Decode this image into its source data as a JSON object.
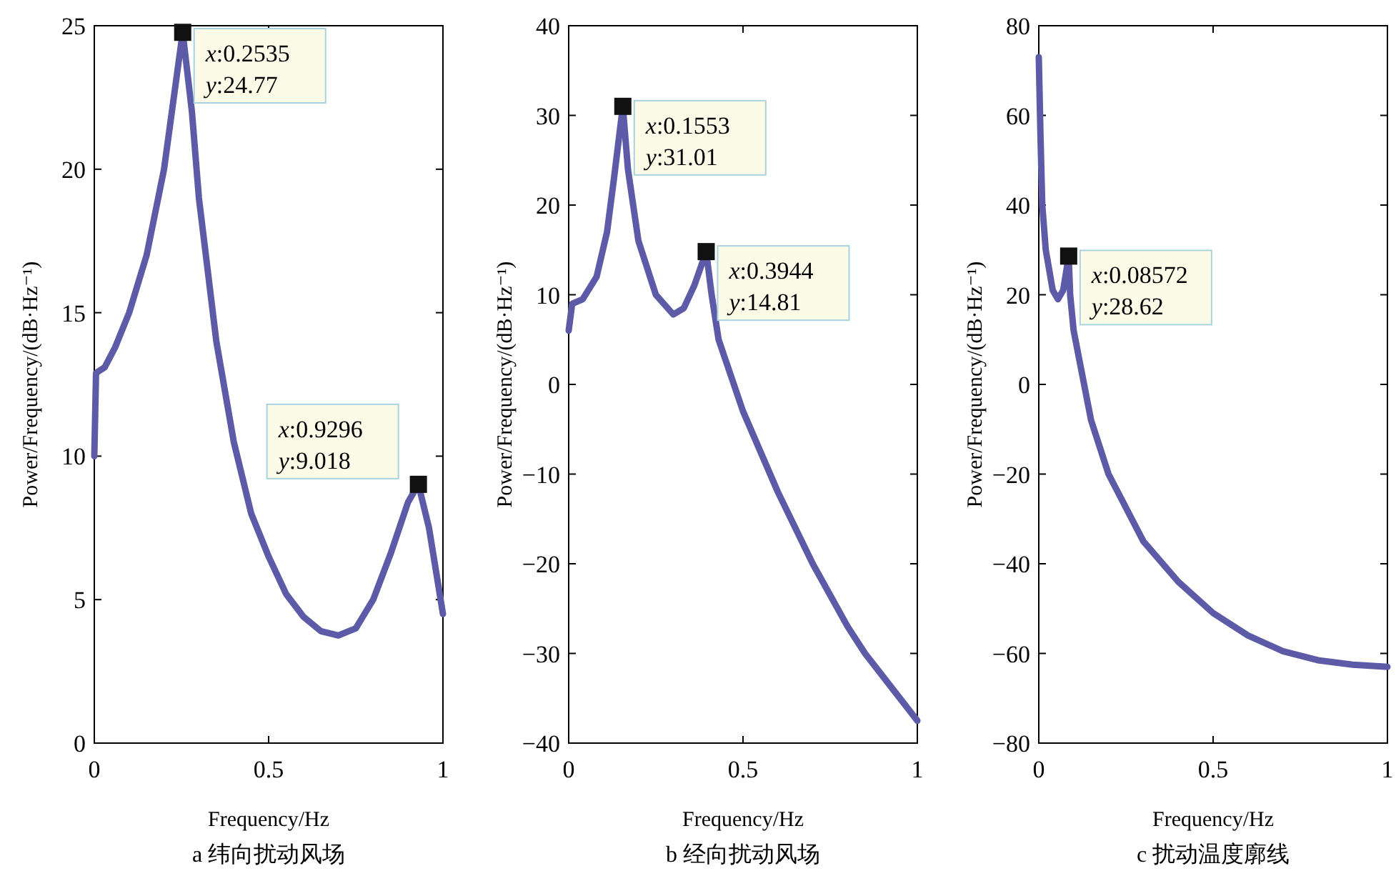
{
  "chart_data": [
    {
      "type": "line",
      "title": "a 纬向扰动风场",
      "xlabel": "Frequency/Hz",
      "ylabel": "Power/Frequency/(dB·Hz⁻¹)",
      "xlim": [
        0,
        1
      ],
      "ylim": [
        0,
        25
      ],
      "xticks": [
        0,
        0.5,
        1
      ],
      "yticks": [
        0,
        5,
        10,
        15,
        20,
        25
      ],
      "x": [
        0,
        0.005,
        0.03,
        0.06,
        0.1,
        0.15,
        0.2,
        0.2535,
        0.28,
        0.3,
        0.35,
        0.4,
        0.45,
        0.5,
        0.55,
        0.6,
        0.65,
        0.7,
        0.75,
        0.8,
        0.85,
        0.9,
        0.9296,
        0.96,
        0.98,
        1
      ],
      "series": [
        {
          "color": "#5d5ba8",
          "values": [
            10,
            12.9,
            13.1,
            13.8,
            15,
            17,
            20,
            24.77,
            22,
            19,
            14,
            10.5,
            8,
            6.5,
            5.2,
            4.4,
            3.9,
            3.75,
            4,
            5,
            6.6,
            8.4,
            9.018,
            7.5,
            6,
            4.5
          ]
        }
      ],
      "annotations": [
        {
          "text": "x:0.2535\ny:24.77",
          "x": 0.2535,
          "y": 24.77
        },
        {
          "text": "x:0.9296\ny:9.018",
          "x": 0.9296,
          "y": 9.018
        }
      ]
    },
    {
      "type": "line",
      "title": "b 经向扰动风场",
      "xlabel": "Frequency/Hz",
      "ylabel": "Power/Frequency/(dB·Hz⁻¹)",
      "xlim": [
        0,
        1
      ],
      "ylim": [
        -40,
        40
      ],
      "xticks": [
        0,
        0.5,
        1
      ],
      "yticks": [
        -40,
        -30,
        -20,
        -10,
        0,
        10,
        20,
        30,
        40
      ],
      "x": [
        0,
        0.01,
        0.04,
        0.08,
        0.11,
        0.13,
        0.1553,
        0.17,
        0.2,
        0.25,
        0.3,
        0.33,
        0.36,
        0.3944,
        0.41,
        0.43,
        0.5,
        0.6,
        0.7,
        0.8,
        0.85,
        0.9,
        1
      ],
      "series": [
        {
          "color": "#5d5ba8",
          "values": [
            6,
            9,
            9.5,
            12,
            17,
            23,
            31.01,
            24,
            16,
            10,
            7.8,
            8.5,
            11,
            14.81,
            10,
            5,
            -3,
            -12,
            -20,
            -27,
            -30,
            -32.5,
            -37.5
          ]
        }
      ],
      "annotations": [
        {
          "text": "x:0.1553\ny:31.01",
          "x": 0.1553,
          "y": 31.01
        },
        {
          "text": "x:0.3944\ny:14.81",
          "x": 0.3944,
          "y": 14.81
        }
      ]
    },
    {
      "type": "line",
      "title": "c 扰动温度廓线",
      "xlabel": "Frequency/Hz",
      "ylabel": "Power/Frequency/(dB·Hz⁻¹)",
      "xlim": [
        0,
        1
      ],
      "ylim": [
        -80,
        80
      ],
      "xticks": [
        0,
        0.5,
        1
      ],
      "yticks": [
        -80,
        -60,
        -40,
        -20,
        0,
        20,
        40,
        60,
        80
      ],
      "x": [
        0,
        0.005,
        0.01,
        0.02,
        0.04,
        0.055,
        0.07,
        0.08572,
        0.09,
        0.1,
        0.15,
        0.2,
        0.3,
        0.4,
        0.5,
        0.6,
        0.7,
        0.8,
        0.9,
        1
      ],
      "series": [
        {
          "color": "#5d5ba8",
          "values": [
            73,
            55,
            40,
            30,
            21,
            19,
            21,
            28.62,
            20,
            12,
            -8,
            -20,
            -35,
            -44,
            -51,
            -56,
            -59.5,
            -61.5,
            -62.5,
            -63
          ]
        }
      ],
      "annotations": [
        {
          "text": "x:0.08572\ny:28.62",
          "x": 0.08572,
          "y": 28.62
        }
      ]
    }
  ]
}
